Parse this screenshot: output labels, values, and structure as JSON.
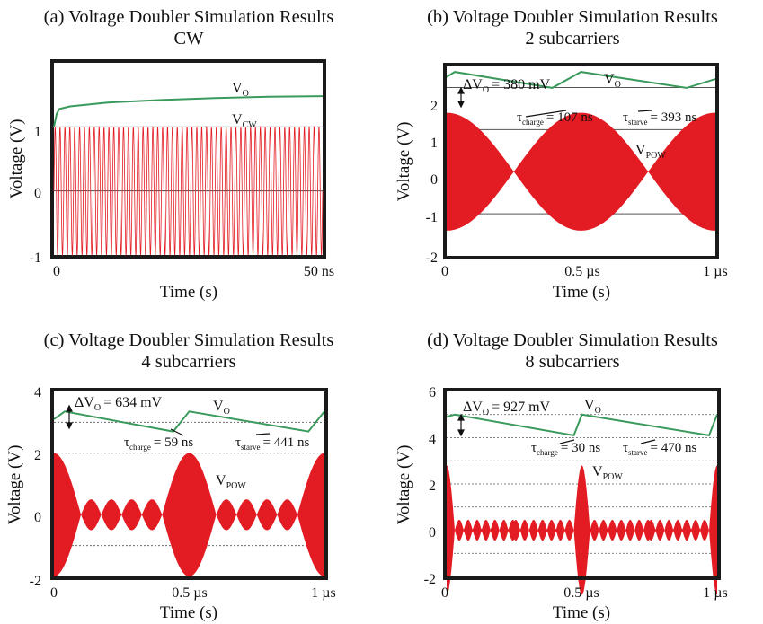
{
  "colors": {
    "output": "#3a9a5c",
    "signal": "#e31b23",
    "frame": "#1a1a1a",
    "grid": "#555555"
  },
  "panels": [
    {
      "title": "(a) Voltage Doubler Simulation Results",
      "subtitle": "CW",
      "ylabel": "Voltage (V)",
      "xlabel": "Time (s)",
      "xticks": [
        "0",
        "50 ns"
      ],
      "yticks": [
        "1",
        "0",
        "-1"
      ],
      "labels": {
        "vo": "V",
        "vo_sub": "O",
        "vin": "V",
        "vin_sub": "CW"
      }
    },
    {
      "title": "(b) Voltage Doubler Simulation Results",
      "subtitle": "2 subcarriers",
      "ylabel": "Voltage (V)",
      "xlabel": "Time (s)",
      "xticks": [
        "0",
        "0.5 µs",
        "1 µs"
      ],
      "yticks": [
        "2",
        "1",
        "0",
        "-1",
        "-2"
      ],
      "labels": {
        "vo": "V",
        "vo_sub": "O",
        "vin": "V",
        "vin_sub": "POW",
        "dv": "ΔV",
        "dv_sub": "O",
        "dv_val": "= 380 mV",
        "tc": "τ",
        "tc_sub": "charge",
        "tc_val": "= 107 ns",
        "ts": "τ",
        "ts_sub": "starve",
        "ts_val": "= 393 ns"
      }
    },
    {
      "title": "(c) Voltage Doubler Simulation Results",
      "subtitle": "4 subcarriers",
      "ylabel": "Voltage (V)",
      "xlabel": "Time (s)",
      "xticks": [
        "0",
        "0.5 µs",
        "1 µs"
      ],
      "yticks": [
        "4",
        "2",
        "0",
        "-2"
      ],
      "labels": {
        "vo": "V",
        "vo_sub": "O",
        "vin": "V",
        "vin_sub": "POW",
        "dv": "ΔV",
        "dv_sub": "O",
        "dv_val": "= 634 mV",
        "tc": "τ",
        "tc_sub": "charge",
        "tc_val": "= 59 ns",
        "ts": "τ",
        "ts_sub": "starve",
        "ts_val": "= 441 ns"
      }
    },
    {
      "title": "(d) Voltage Doubler Simulation Results",
      "subtitle": "8 subcarriers",
      "ylabel": "Voltage (V)",
      "xlabel": "Time (s)",
      "xticks": [
        "0",
        "0.5 µs",
        "1 µs"
      ],
      "yticks": [
        "6",
        "4",
        "2",
        "0",
        "-2"
      ],
      "labels": {
        "vo": "V",
        "vo_sub": "O",
        "vin": "V",
        "vin_sub": "POW",
        "dv": "ΔV",
        "dv_sub": "O",
        "dv_val": "= 927 mV",
        "tc": "τ",
        "tc_sub": "charge",
        "tc_val": "= 30 ns",
        "ts": "τ",
        "ts_sub": "starve",
        "ts_val": "= 470 ns"
      }
    }
  ],
  "chart_data": [
    {
      "type": "line",
      "title": "(a) Voltage Doubler Simulation Results CW",
      "xlabel": "Time (s)",
      "ylabel": "Voltage (V)",
      "xlim": [
        0,
        50
      ],
      "x_unit": "ns",
      "ylim": [
        -1,
        2
      ],
      "series": [
        {
          "name": "VO",
          "x": [
            0,
            0.5,
            1,
            3,
            10,
            20,
            30,
            40,
            50
          ],
          "y": [
            1.0,
            1.2,
            1.28,
            1.32,
            1.38,
            1.42,
            1.45,
            1.47,
            1.48
          ]
        },
        {
          "name": "VCW",
          "kind": "sinusoid",
          "amplitude": 1,
          "cycles": 55
        }
      ]
    },
    {
      "type": "line",
      "title": "(b) Voltage Doubler Simulation Results 2 subcarriers",
      "xlabel": "Time (s)",
      "ylabel": "Voltage (V)",
      "xlim": [
        0,
        1
      ],
      "x_unit": "µs",
      "ylim": [
        -2,
        2.5
      ],
      "series": [
        {
          "name": "VO",
          "x": [
            0,
            0.03,
            0.393,
            0.5,
            0.893,
            1.0
          ],
          "y": [
            2.25,
            2.37,
            1.99,
            2.37,
            1.99,
            2.2
          ]
        },
        {
          "name": "VPOW",
          "kind": "envelope",
          "peak": 1.4,
          "peak_times": [
            0,
            0.5,
            1.0
          ],
          "zero_times": [
            0.25,
            0.75
          ]
        }
      ],
      "annotations": {
        "delta_vo_mV": 380,
        "tau_charge_ns": 107,
        "tau_starve_ns": 393
      }
    },
    {
      "type": "line",
      "title": "(c) Voltage Doubler Simulation Results 4 subcarriers",
      "xlabel": "Time (s)",
      "ylabel": "Voltage (V)",
      "xlim": [
        0,
        1
      ],
      "x_unit": "µs",
      "ylim": [
        -2,
        4
      ],
      "series": [
        {
          "name": "VO",
          "x": [
            0,
            0.04,
            0.441,
            0.5,
            0.941,
            1.0
          ],
          "y": [
            3.1,
            3.35,
            2.7,
            3.35,
            2.7,
            3.35
          ]
        },
        {
          "name": "VPOW",
          "kind": "envelope",
          "peak": 2.0,
          "peak_times": [
            0,
            0.5,
            1.0
          ],
          "side_lobe_peak": 0.5
        }
      ],
      "annotations": {
        "delta_vo_mV": 634,
        "tau_charge_ns": 59,
        "tau_starve_ns": 441
      }
    },
    {
      "type": "line",
      "title": "(d) Voltage Doubler Simulation Results 8 subcarriers",
      "xlabel": "Time (s)",
      "ylabel": "Voltage (V)",
      "xlim": [
        0,
        1
      ],
      "x_unit": "µs",
      "ylim": [
        -2,
        6
      ],
      "series": [
        {
          "name": "VO",
          "x": [
            0,
            0.03,
            0.47,
            0.5,
            0.97,
            1.0
          ],
          "y": [
            4.9,
            5.0,
            4.1,
            5.0,
            4.1,
            5.0
          ]
        },
        {
          "name": "VPOW",
          "kind": "envelope",
          "peak": 2.8,
          "peak_times": [
            0,
            0.5,
            1.0
          ],
          "side_lobe_peak": 0.45
        }
      ],
      "annotations": {
        "delta_vo_mV": 927,
        "tau_charge_ns": 30,
        "tau_starve_ns": 470
      }
    }
  ]
}
